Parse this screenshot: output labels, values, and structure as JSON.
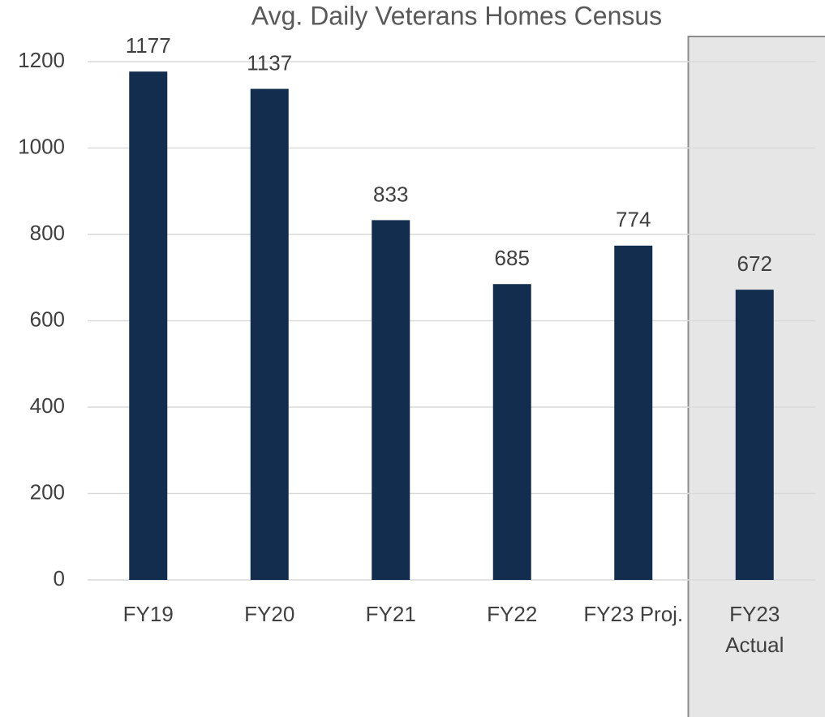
{
  "chart_data": {
    "type": "bar",
    "title": "Avg. Daily Veterans Homes Census",
    "categories": [
      "FY19",
      "FY20",
      "FY21",
      "FY22",
      "FY23 Proj.",
      "FY23 Actual"
    ],
    "values": [
      1177,
      1137,
      833,
      685,
      774,
      672
    ],
    "color": "#132d4f",
    "ylim": [
      0,
      1200
    ],
    "yticks": [
      0,
      200,
      400,
      600,
      800,
      1000,
      1200
    ],
    "grid": true
  }
}
